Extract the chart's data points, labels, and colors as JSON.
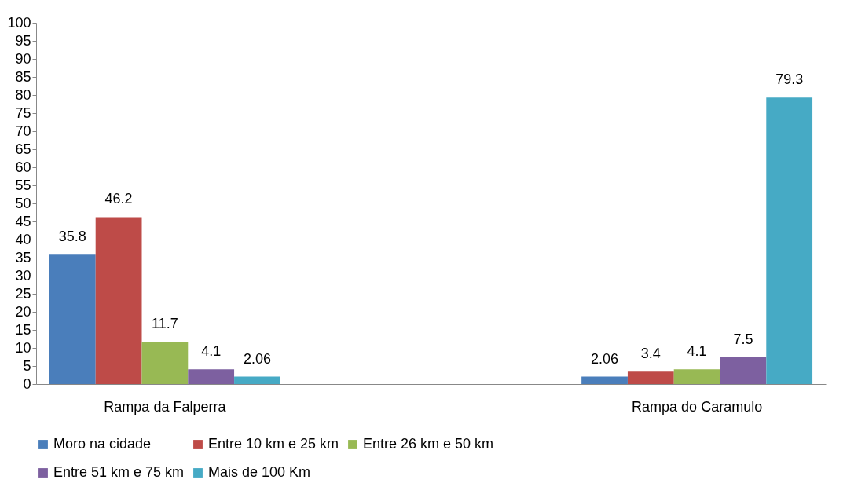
{
  "chart_data": {
    "type": "bar",
    "categories": [
      "Rampa da Falperra",
      "Rampa do Caramulo"
    ],
    "series": [
      {
        "name": "Moro na cidade",
        "color": "#4a7ebb",
        "values": [
          35.8,
          2.06
        ]
      },
      {
        "name": "Entre 10 km e 25 km",
        "color": "#be4b48",
        "values": [
          46.2,
          3.4
        ]
      },
      {
        "name": "Entre 26 km e 50 km",
        "color": "#98b954",
        "values": [
          11.7,
          4.1
        ]
      },
      {
        "name": "Entre 51 km e 75 km",
        "color": "#7d60a0",
        "values": [
          4.1,
          7.5
        ]
      },
      {
        "name": "Mais de 100 Km",
        "color": "#46aac5",
        "values": [
          2.06,
          79.3
        ]
      }
    ],
    "ylim": [
      0,
      100
    ],
    "yticks": [
      0,
      5,
      10,
      15,
      20,
      25,
      30,
      35,
      40,
      45,
      50,
      55,
      60,
      65,
      70,
      75,
      80,
      85,
      90,
      95,
      100
    ],
    "grid": false,
    "legend": "bottom",
    "data_labels": true
  }
}
